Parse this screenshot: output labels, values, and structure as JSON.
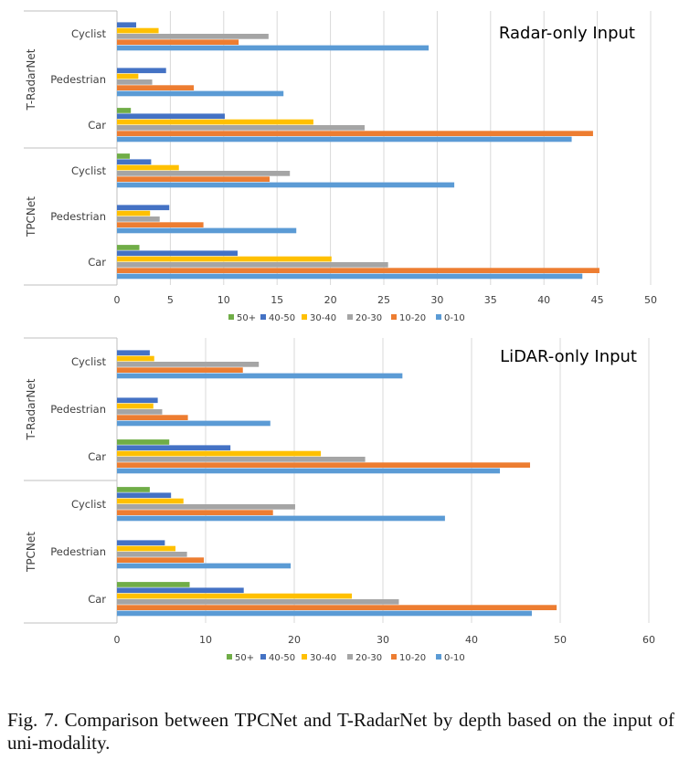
{
  "chart_data": [
    {
      "type": "bar",
      "orientation": "horizontal",
      "title": "Radar-only Input",
      "groups": [
        "T-RadarNet",
        "TPCNet"
      ],
      "categories": [
        "Cyclist",
        "Pedestrian",
        "Car"
      ],
      "xlim": [
        0,
        50
      ],
      "xticks": [
        "0",
        "5",
        "10",
        "15",
        "20",
        "25",
        "30",
        "35",
        "40",
        "45",
        "50"
      ],
      "legend": [
        "50+",
        "40-50",
        "30-40",
        "20-30",
        "10-20",
        "0-10"
      ],
      "legend_position": "bottom",
      "grid": true,
      "series": [
        {
          "name": "50+",
          "values": {
            "T-RadarNet": [
              0,
              0,
              1.3
            ],
            "TPCNet": [
              1.2,
              0,
              2.1
            ]
          }
        },
        {
          "name": "40-50",
          "values": {
            "T-RadarNet": [
              1.8,
              4.6,
              10.1
            ],
            "TPCNet": [
              3.2,
              4.9,
              11.3
            ]
          }
        },
        {
          "name": "30-40",
          "values": {
            "T-RadarNet": [
              3.9,
              2.0,
              18.4
            ],
            "TPCNet": [
              5.8,
              3.1,
              20.1
            ]
          }
        },
        {
          "name": "20-30",
          "values": {
            "T-RadarNet": [
              14.2,
              3.3,
              23.2
            ],
            "TPCNet": [
              16.2,
              4.0,
              25.4
            ]
          }
        },
        {
          "name": "10-20",
          "values": {
            "T-RadarNet": [
              11.4,
              7.2,
              44.6
            ],
            "TPCNet": [
              14.3,
              8.1,
              45.2
            ]
          }
        },
        {
          "name": "0-10",
          "values": {
            "T-RadarNet": [
              29.2,
              15.6,
              42.6
            ],
            "TPCNet": [
              31.6,
              16.8,
              43.6
            ]
          }
        }
      ]
    },
    {
      "type": "bar",
      "orientation": "horizontal",
      "title": "LiDAR-only Input",
      "groups": [
        "T-RadarNet",
        "TPCNet"
      ],
      "categories": [
        "Cyclist",
        "Pedestrian",
        "Car"
      ],
      "xlim": [
        0,
        60
      ],
      "xticks": [
        "0",
        "10",
        "20",
        "30",
        "40",
        "50",
        "60"
      ],
      "legend": [
        "50+",
        "40-50",
        "30-40",
        "20-30",
        "10-20",
        "0-10"
      ],
      "legend_position": "bottom",
      "grid": true,
      "series": [
        {
          "name": "50+",
          "values": {
            "T-RadarNet": [
              0,
              0,
              5.9
            ],
            "TPCNet": [
              3.7,
              0,
              8.2
            ]
          }
        },
        {
          "name": "40-50",
          "values": {
            "T-RadarNet": [
              3.7,
              4.6,
              12.8
            ],
            "TPCNet": [
              6.1,
              5.4,
              14.3
            ]
          }
        },
        {
          "name": "30-40",
          "values": {
            "T-RadarNet": [
              4.2,
              4.1,
              23.0
            ],
            "TPCNet": [
              7.5,
              6.6,
              26.5
            ]
          }
        },
        {
          "name": "20-30",
          "values": {
            "T-RadarNet": [
              16.0,
              5.1,
              28.0
            ],
            "TPCNet": [
              20.1,
              7.9,
              31.8
            ]
          }
        },
        {
          "name": "10-20",
          "values": {
            "T-RadarNet": [
              14.2,
              8.0,
              46.6
            ],
            "TPCNet": [
              17.6,
              9.8,
              49.6
            ]
          }
        },
        {
          "name": "0-10",
          "values": {
            "T-RadarNet": [
              32.2,
              17.3,
              43.2
            ],
            "TPCNet": [
              37.0,
              19.6,
              46.8
            ]
          }
        }
      ]
    }
  ],
  "colors": {
    "50+": "#70AD47",
    "40-50": "#4472C4",
    "30-40": "#FFC000",
    "20-30": "#A5A5A5",
    "10-20": "#ED7D31",
    "0-10": "#5B9BD5",
    "grid": "#D9D9D9",
    "axis": "#BFBFBF",
    "text": "#404040"
  },
  "caption": "Fig. 7.  Comparison between TPCNet and T-RadarNet by depth based on the input of uni-modality."
}
